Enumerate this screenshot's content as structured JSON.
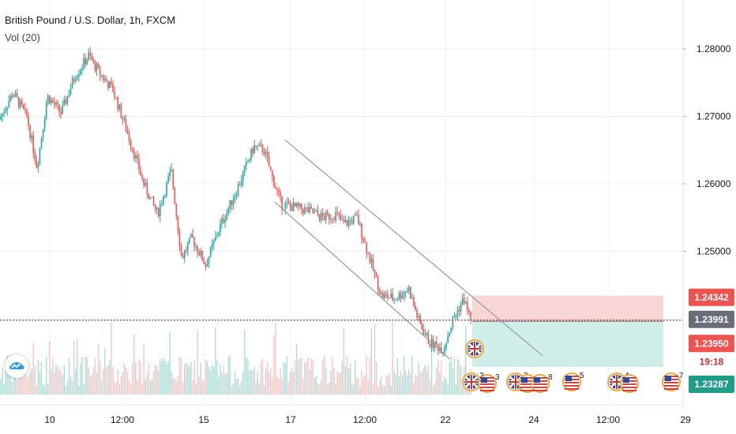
{
  "header": {
    "title": "British Pound / U.S. Dollar, 1h, FXCM",
    "volume_indicator": "Vol (20)"
  },
  "price_labels": {
    "target_top": "1.24342",
    "current": "1.23991",
    "entry": "1.23950",
    "countdown": "19:18",
    "stop_bottom": "1.23287"
  },
  "event_badges": [
    "2",
    "3",
    "3",
    "4",
    "8",
    "5",
    "4",
    "7"
  ],
  "colors": {
    "up": "#26a69a",
    "down": "#ef5350",
    "target_fill": "#f7d6d5",
    "stop_fill": "#cdeee9",
    "trendline": "#999999",
    "current_line": "#c62828"
  },
  "chart_data": {
    "type": "candlestick",
    "title": "British Pound / U.S. Dollar, 1h, FXCM",
    "ylim": [
      1.2285,
      1.2855
    ],
    "yticks": [
      "1.28000",
      "1.27000",
      "1.26000",
      "1.25000"
    ],
    "xticks": [
      "10",
      "12:00",
      "15",
      "17",
      "12:00",
      "22",
      "24",
      "12:00",
      "29"
    ],
    "price_path": [
      {
        "x": 0,
        "y": 1.2695
      },
      {
        "x": 0.02,
        "y": 1.2735
      },
      {
        "x": 0.04,
        "y": 1.27
      },
      {
        "x": 0.055,
        "y": 1.2625
      },
      {
        "x": 0.07,
        "y": 1.273
      },
      {
        "x": 0.09,
        "y": 1.2705
      },
      {
        "x": 0.11,
        "y": 1.276
      },
      {
        "x": 0.13,
        "y": 1.279
      },
      {
        "x": 0.145,
        "y": 1.2765
      },
      {
        "x": 0.165,
        "y": 1.274
      },
      {
        "x": 0.19,
        "y": 1.2665
      },
      {
        "x": 0.21,
        "y": 1.26
      },
      {
        "x": 0.23,
        "y": 1.2555
      },
      {
        "x": 0.25,
        "y": 1.262
      },
      {
        "x": 0.265,
        "y": 1.249
      },
      {
        "x": 0.28,
        "y": 1.252
      },
      {
        "x": 0.3,
        "y": 1.248
      },
      {
        "x": 0.32,
        "y": 1.2535
      },
      {
        "x": 0.345,
        "y": 1.259
      },
      {
        "x": 0.37,
        "y": 1.2655
      },
      {
        "x": 0.385,
        "y": 1.265
      },
      {
        "x": 0.395,
        "y": 1.2615
      },
      {
        "x": 0.41,
        "y": 1.257
      },
      {
        "x": 0.43,
        "y": 1.2565
      },
      {
        "x": 0.45,
        "y": 1.256
      },
      {
        "x": 0.47,
        "y": 1.255
      },
      {
        "x": 0.49,
        "y": 1.2555
      },
      {
        "x": 0.5,
        "y": 1.254
      },
      {
        "x": 0.52,
        "y": 1.255
      },
      {
        "x": 0.535,
        "y": 1.25
      },
      {
        "x": 0.555,
        "y": 1.2435
      },
      {
        "x": 0.575,
        "y": 1.243
      },
      {
        "x": 0.595,
        "y": 1.2445
      },
      {
        "x": 0.61,
        "y": 1.2395
      },
      {
        "x": 0.625,
        "y": 1.2365
      },
      {
        "x": 0.645,
        "y": 1.2355
      },
      {
        "x": 0.66,
        "y": 1.24
      },
      {
        "x": 0.675,
        "y": 1.243
      },
      {
        "x": 0.685,
        "y": 1.2399
      }
    ],
    "trendlines": [
      {
        "from": {
          "x": 0.415,
          "y": 1.2665
        },
        "to": {
          "x": 0.79,
          "y": 1.2345
        }
      },
      {
        "from": {
          "x": 0.4,
          "y": 1.2573
        },
        "to": {
          "x": 0.655,
          "y": 1.234
        }
      }
    ],
    "position": {
      "target": 1.24342,
      "entry": 1.2395,
      "stop": 1.23287
    },
    "current_price": 1.23991
  }
}
